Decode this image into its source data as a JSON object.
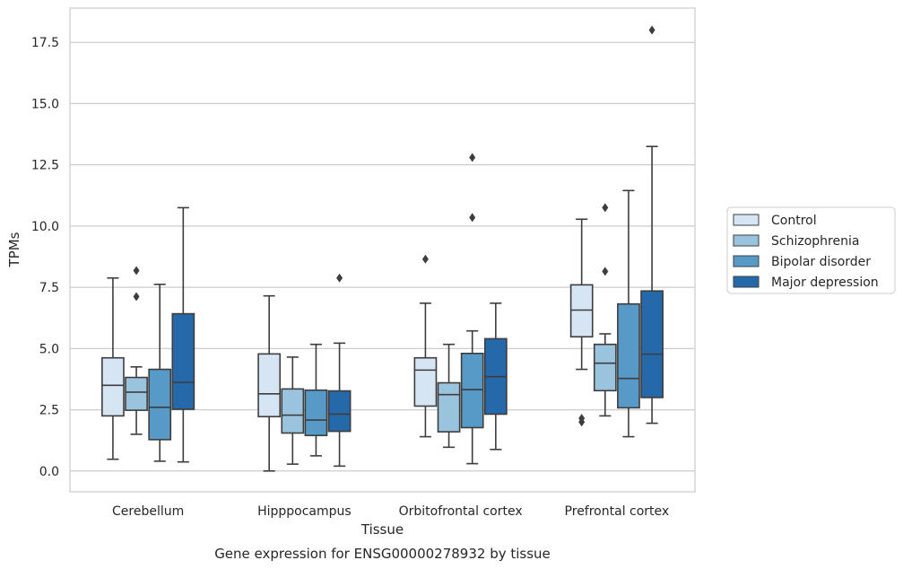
{
  "chart_data": {
    "type": "box",
    "caption": "Gene expression for ENSG00000278932 by tissue",
    "xlabel": "Tissue",
    "ylabel": "TPMs",
    "ylim": [
      -0.85,
      18.9
    ],
    "yticks": [
      0.0,
      2.5,
      5.0,
      7.5,
      10.0,
      12.5,
      15.0,
      17.5
    ],
    "ytick_labels": [
      "0.0",
      "2.5",
      "5.0",
      "7.5",
      "10.0",
      "12.5",
      "15.0",
      "17.5"
    ],
    "grid": "horizontal",
    "legend_position": "outside-right",
    "categories": [
      "Cerebellum",
      "Hipppocampus",
      "Orbitofrontal cortex",
      "Prefrontal cortex"
    ],
    "series": [
      {
        "name": "Control",
        "color": "#d6e5f4",
        "boxes": [
          {
            "whislo": 0.48,
            "q1": 2.25,
            "med": 3.5,
            "q3": 4.62,
            "whishi": 7.88,
            "fliers": []
          },
          {
            "whislo": 0.0,
            "q1": 2.22,
            "med": 3.15,
            "q3": 4.78,
            "whishi": 7.15,
            "fliers": []
          },
          {
            "whislo": 1.4,
            "q1": 2.65,
            "med": 4.12,
            "q3": 4.62,
            "whishi": 6.85,
            "fliers": [
              8.65
            ]
          },
          {
            "whislo": 4.15,
            "q1": 5.48,
            "med": 6.57,
            "q3": 7.6,
            "whishi": 10.28,
            "fliers": [
              2.0,
              2.15
            ]
          }
        ]
      },
      {
        "name": "Schizophrenia",
        "color": "#9ac4de",
        "boxes": [
          {
            "whislo": 1.5,
            "q1": 2.48,
            "med": 3.22,
            "q3": 3.82,
            "whishi": 4.25,
            "fliers": [
              7.12,
              8.18
            ]
          },
          {
            "whislo": 0.28,
            "q1": 1.55,
            "med": 2.28,
            "q3": 3.35,
            "whishi": 4.65,
            "fliers": []
          },
          {
            "whislo": 0.97,
            "q1": 1.6,
            "med": 3.12,
            "q3": 3.6,
            "whishi": 5.17,
            "fliers": []
          },
          {
            "whislo": 2.25,
            "q1": 3.28,
            "med": 4.4,
            "q3": 5.17,
            "whishi": 5.6,
            "fliers": [
              8.15,
              10.75
            ]
          }
        ]
      },
      {
        "name": "Bipolar disorder",
        "color": "#5799c7",
        "boxes": [
          {
            "whislo": 0.4,
            "q1": 1.28,
            "med": 2.6,
            "q3": 4.15,
            "whishi": 7.62,
            "fliers": []
          },
          {
            "whislo": 0.62,
            "q1": 1.45,
            "med": 2.08,
            "q3": 3.3,
            "whishi": 5.17,
            "fliers": []
          },
          {
            "whislo": 0.3,
            "q1": 1.77,
            "med": 3.32,
            "q3": 4.8,
            "whishi": 5.72,
            "fliers": [
              10.35,
              12.8
            ]
          },
          {
            "whislo": 1.4,
            "q1": 2.58,
            "med": 3.78,
            "q3": 6.82,
            "whishi": 11.45,
            "fliers": []
          }
        ]
      },
      {
        "name": "Major depression",
        "color": "#2569aa",
        "boxes": [
          {
            "whislo": 0.37,
            "q1": 2.52,
            "med": 3.62,
            "q3": 6.42,
            "whishi": 10.75,
            "fliers": []
          },
          {
            "whislo": 0.2,
            "q1": 1.62,
            "med": 2.32,
            "q3": 3.27,
            "whishi": 5.22,
            "fliers": [
              7.88
            ]
          },
          {
            "whislo": 0.88,
            "q1": 2.32,
            "med": 3.85,
            "q3": 5.4,
            "whishi": 6.85,
            "fliers": []
          },
          {
            "whislo": 1.95,
            "q1": 3.0,
            "med": 4.77,
            "q3": 7.35,
            "whishi": 13.25,
            "fliers": [
              18.0
            ]
          }
        ]
      }
    ]
  }
}
